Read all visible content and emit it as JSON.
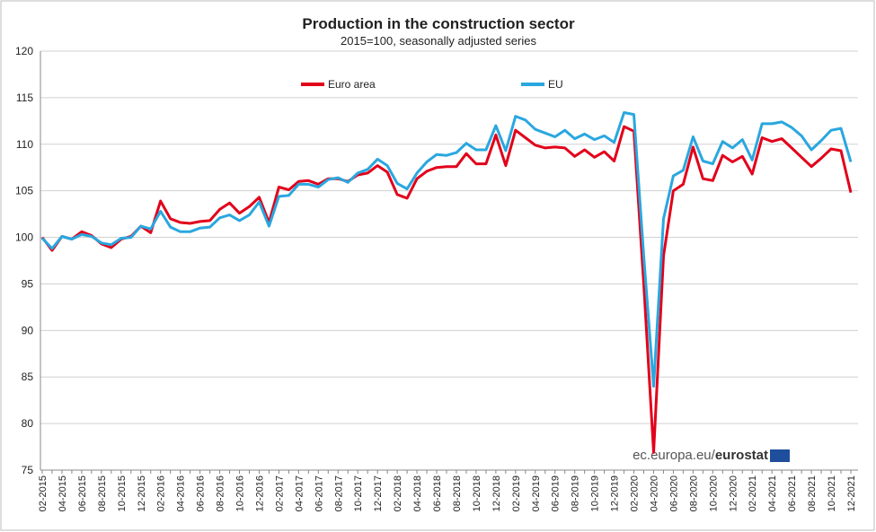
{
  "chart_data": {
    "type": "line",
    "title": "Production in the construction sector",
    "subtitle": "2015=100, seasonally adjusted series",
    "source": [
      "ec.europa.eu/",
      "eurostat"
    ],
    "categories": [
      "02-2015",
      null,
      "04-2015",
      null,
      "06-2015",
      null,
      "08-2015",
      null,
      "10-2015",
      null,
      "12-2015",
      null,
      "02-2016",
      null,
      "04-2016",
      null,
      "06-2016",
      null,
      "08-2016",
      null,
      "10-2016",
      null,
      "12-2016",
      null,
      "02-2017",
      null,
      "04-2017",
      null,
      "06-2017",
      null,
      "08-2017",
      null,
      "10-2017",
      null,
      "12-2017",
      null,
      "02-2018",
      null,
      "04-2018",
      null,
      "06-2018",
      null,
      "08-2018",
      null,
      "10-2018",
      null,
      "12-2018",
      null,
      "02-2019",
      null,
      "04-2019",
      null,
      "06-2019",
      null,
      "08-2019",
      null,
      "10-2019",
      null,
      "12-2019",
      null,
      "02-2020",
      null,
      "04-2020",
      null,
      "06-2020",
      null,
      "08-2020",
      null,
      "10-2020",
      null,
      "12-2020",
      null,
      "02-2021",
      null,
      "04-2021",
      null,
      "06-2021",
      null,
      "08-2021",
      null,
      "10-2021",
      null,
      "12-2021"
    ],
    "series": [
      {
        "name": "Euro area",
        "color": "#e2001a",
        "values": [
          100,
          98.6,
          100.1,
          99.8,
          100.6,
          100.2,
          99.3,
          98.9,
          99.8,
          100.1,
          101.2,
          100.5,
          103.9,
          102,
          101.6,
          101.5,
          101.7,
          101.8,
          103,
          103.7,
          102.6,
          103.3,
          104.3,
          101.6,
          105.4,
          105.1,
          106,
          106.1,
          105.7,
          106.3,
          106.3,
          106,
          106.7,
          106.9,
          107.7,
          107,
          104.6,
          104.2,
          106.3,
          107.1,
          107.5,
          107.6,
          107.6,
          109,
          107.9,
          107.9,
          111,
          107.7,
          111.5,
          110.7,
          109.9,
          109.6,
          109.7,
          109.6,
          108.7,
          109.4,
          108.6,
          109.2,
          108.2,
          111.9,
          111.4,
          95,
          76.9,
          98,
          105,
          105.7,
          109.7,
          106.3,
          106.1,
          108.8,
          108.1,
          108.7,
          106.8,
          110.7,
          110.3,
          110.6,
          109.6,
          108.6,
          107.6,
          108.5,
          109.5,
          109.3,
          104.8
        ]
      },
      {
        "name": "EU",
        "color": "#2aa7df",
        "values": [
          99.9,
          98.8,
          100.1,
          99.8,
          100.3,
          100.1,
          99.4,
          99.2,
          99.9,
          100,
          101.2,
          100.9,
          102.8,
          101.1,
          100.6,
          100.6,
          101,
          101.1,
          102.1,
          102.4,
          101.8,
          102.4,
          103.8,
          101.2,
          104.4,
          104.5,
          105.7,
          105.7,
          105.4,
          106.2,
          106.4,
          105.9,
          106.9,
          107.3,
          108.4,
          107.7,
          105.8,
          105.2,
          106.9,
          108.1,
          108.9,
          108.8,
          109.1,
          110.1,
          109.4,
          109.4,
          112,
          109.3,
          113,
          112.6,
          111.6,
          111.2,
          110.8,
          111.5,
          110.6,
          111.1,
          110.5,
          110.9,
          110.2,
          113.4,
          113.2,
          98,
          84,
          102,
          106.6,
          107.2,
          110.8,
          108.2,
          107.9,
          110.3,
          109.6,
          110.5,
          108.3,
          112.2,
          112.2,
          112.4,
          111.8,
          110.9,
          109.4,
          110.4,
          111.5,
          111.7,
          108.1
        ]
      }
    ],
    "ylim": [
      75,
      120
    ],
    "yticks": [
      75,
      80,
      85,
      90,
      95,
      100,
      105,
      110,
      115,
      120
    ],
    "grid": true,
    "legend": "top"
  }
}
